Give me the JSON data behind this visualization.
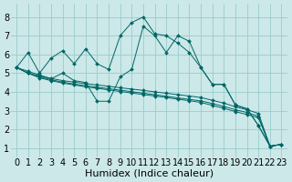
{
  "title": "",
  "xlabel": "Humidex (Indice chaleur)",
  "ylabel": "",
  "xlim": [
    -0.5,
    23.5
  ],
  "ylim": [
    0.5,
    8.7
  ],
  "xticks": [
    0,
    1,
    2,
    3,
    4,
    5,
    6,
    7,
    8,
    9,
    10,
    11,
    12,
    13,
    14,
    15,
    16,
    17,
    18,
    19,
    20,
    21,
    22,
    23
  ],
  "yticks": [
    1,
    2,
    3,
    4,
    5,
    6,
    7,
    8
  ],
  "background_color": "#cce8e8",
  "grid_color": "#99cccc",
  "line_color": "#006666",
  "series": [
    [
      5.3,
      6.1,
      5.0,
      5.8,
      6.2,
      5.5,
      6.3,
      5.5,
      5.2,
      7.0,
      7.7,
      8.0,
      7.1,
      7.0,
      6.6,
      6.1,
      5.3,
      4.4,
      4.4,
      3.3,
      3.1,
      2.2,
      1.1,
      1.2
    ],
    [
      5.3,
      5.1,
      4.9,
      4.7,
      5.0,
      4.6,
      4.5,
      3.5,
      3.5,
      4.8,
      5.2,
      7.5,
      7.0,
      6.1,
      7.0,
      6.7,
      5.3,
      4.4,
      4.4,
      3.3,
      3.1,
      2.2,
      1.1,
      1.2
    ],
    [
      5.3,
      5.0,
      4.85,
      4.72,
      4.6,
      4.52,
      4.44,
      4.37,
      4.3,
      4.22,
      4.15,
      4.08,
      4.0,
      3.93,
      3.85,
      3.78,
      3.7,
      3.55,
      3.4,
      3.2,
      3.05,
      2.85,
      1.1,
      1.2
    ],
    [
      5.3,
      5.0,
      4.8,
      4.65,
      4.52,
      4.42,
      4.33,
      4.25,
      4.17,
      4.09,
      4.01,
      3.93,
      3.85,
      3.77,
      3.68,
      3.6,
      3.52,
      3.38,
      3.22,
      3.05,
      2.9,
      2.7,
      1.1,
      1.2
    ],
    [
      5.3,
      5.0,
      4.75,
      4.6,
      4.47,
      4.37,
      4.27,
      4.19,
      4.11,
      4.02,
      3.94,
      3.86,
      3.78,
      3.7,
      3.61,
      3.53,
      3.44,
      3.28,
      3.12,
      2.95,
      2.79,
      2.62,
      1.1,
      1.2
    ]
  ],
  "fontsize": 7,
  "title_fontsize": 7,
  "figsize": [
    3.2,
    2.0
  ],
  "dpi": 100
}
